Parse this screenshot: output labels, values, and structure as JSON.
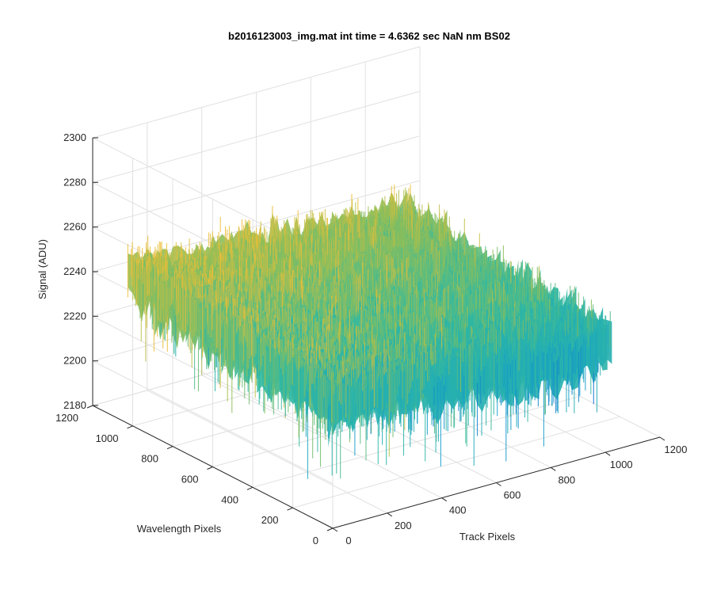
{
  "window": {
    "background": "#ffffff"
  },
  "chart_data": {
    "type": "surface",
    "title": "b2016123003_img.mat int time = 4.6362 sec  NaN nm BS02",
    "xlabel": "Track Pixels",
    "ylabel": "Wavelength Pixels",
    "zlabel": "Signal (ADU)",
    "xlim": [
      0,
      1200
    ],
    "ylim": [
      0,
      1200
    ],
    "zlim": [
      2180,
      2300
    ],
    "xticks": [
      0,
      200,
      400,
      600,
      800,
      1000,
      1200
    ],
    "yticks": [
      0,
      200,
      400,
      600,
      800,
      1000,
      1200
    ],
    "zticks": [
      2180,
      2200,
      2220,
      2240,
      2260,
      2280,
      2300
    ],
    "xtick_labels": [
      "0",
      "200",
      "400",
      "600",
      "800",
      "1000",
      "1200"
    ],
    "ytick_labels": [
      "0",
      "200",
      "400",
      "600",
      "800",
      "1000",
      "1200"
    ],
    "ztick_labels": [
      "2180",
      "2200",
      "2220",
      "2240",
      "2260",
      "2280",
      "2300"
    ],
    "grid": true,
    "colormap": "parula",
    "surface": {
      "x_range": [
        0,
        1024
      ],
      "y_range": [
        0,
        1024
      ],
      "mean_signal": 2240,
      "signal_range": [
        2190,
        2290
      ],
      "high_region": "low x, high y (yellow)",
      "low_region": "high x, low y (blue)"
    },
    "colors": {
      "low": "#0f8fd8",
      "mid": "#33b8a8",
      "high": "#e8ba40",
      "grid": "#e0e0e0",
      "axis": "#262626"
    }
  }
}
